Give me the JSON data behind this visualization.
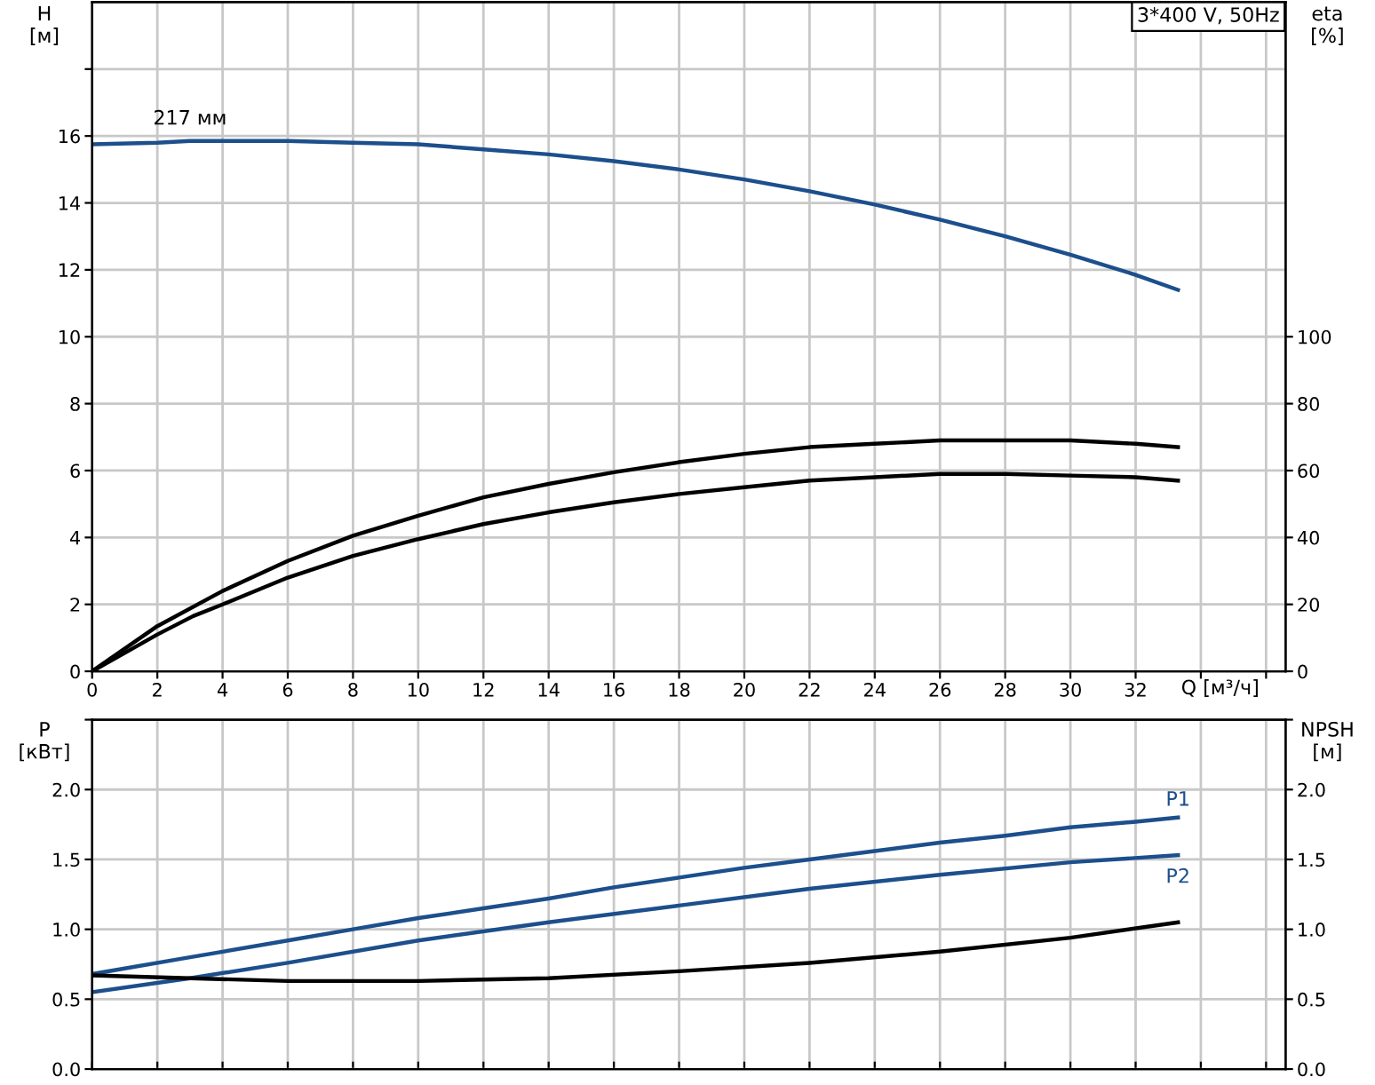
{
  "chart_data": [
    {
      "type": "line",
      "title": "3*400 V, 50Hz",
      "xlabel": "Q [м³/ч]",
      "ylabel": "H\n[м]",
      "y2label": "eta\n[%]",
      "xlim": [
        0,
        36.6
      ],
      "xticks": [
        0,
        2,
        4,
        6,
        8,
        10,
        12,
        14,
        16,
        18,
        20,
        22,
        24,
        26,
        28,
        30,
        32,
        {
          "value": 34,
          "label": null
        },
        {
          "value": 36,
          "label": null
        }
      ],
      "ylim": [
        0,
        20
      ],
      "yticks": [
        0,
        2,
        4,
        6,
        8,
        10,
        12,
        14,
        16,
        {
          "value": 18,
          "label": null
        }
      ],
      "y2lim": [
        0,
        200
      ],
      "y2ticks": [
        0,
        20,
        40,
        60,
        80,
        100
      ],
      "grid": true,
      "legend": false,
      "line_style": "solid",
      "marker": "none",
      "annotations": [
        {
          "text": "217 мм",
          "x": 3,
          "y": 15.85
        }
      ],
      "series": [
        {
          "color": "#1c4f8c",
          "axis": "y",
          "x": [
            0,
            2,
            3,
            4,
            6,
            8,
            10,
            12,
            14,
            16,
            18,
            20,
            22,
            24,
            26,
            28,
            30,
            32,
            33.3
          ],
          "values": [
            15.75,
            15.8,
            15.85,
            15.85,
            15.85,
            15.8,
            15.75,
            15.6,
            15.45,
            15.25,
            15.0,
            14.7,
            14.35,
            13.95,
            13.5,
            13.0,
            12.45,
            11.85,
            11.4
          ]
        },
        {
          "color": "#000000",
          "axis": "y2",
          "x": [
            0,
            2,
            4,
            6,
            8,
            10,
            12,
            14,
            16,
            18,
            20,
            22,
            24,
            26,
            28,
            30,
            32,
            33.3
          ],
          "values": [
            0,
            13.5,
            24,
            33,
            40.5,
            46.5,
            52,
            56,
            59.5,
            62.5,
            65,
            67,
            68,
            69,
            69,
            69,
            68,
            67
          ]
        },
        {
          "color": "#000000",
          "axis": "y2",
          "x": [
            0,
            2,
            3.1,
            4,
            6,
            8,
            10,
            12,
            14,
            16,
            18,
            20,
            22,
            24,
            26,
            28,
            30,
            32,
            33.3
          ],
          "values": [
            0,
            11,
            16.5,
            20,
            28,
            34.5,
            39.5,
            44,
            47.5,
            50.5,
            53,
            55,
            57,
            58,
            59,
            59,
            58.5,
            58,
            57
          ]
        }
      ]
    },
    {
      "type": "line",
      "ylabel": "P\n[кВт]",
      "y2label": "NPSH\n[м]",
      "tick_labels": "y",
      "xlim": [
        0,
        36.6
      ],
      "xticks": [
        0,
        2,
        4,
        6,
        8,
        10,
        12,
        14,
        16,
        18,
        20,
        22,
        24,
        26,
        28,
        30,
        32,
        34,
        36
      ],
      "ylim": [
        0,
        2.5
      ],
      "yticks": [
        {
          "value": 0,
          "label": "0.0"
        },
        {
          "value": 0.5,
          "label": "0.5"
        },
        {
          "value": 1,
          "label": "1.0"
        },
        {
          "value": 1.5,
          "label": "1.5"
        },
        {
          "value": 2,
          "label": "2.0"
        },
        {
          "value": 2.5,
          "label": null
        }
      ],
      "y2lim": [
        0,
        2.5
      ],
      "y2ticks": [
        {
          "value": 0,
          "label": "0.0"
        },
        {
          "value": 0.5,
          "label": "0.5"
        },
        {
          "value": 1,
          "label": "1.0"
        },
        {
          "value": 1.5,
          "label": "1.5"
        },
        {
          "value": 2,
          "label": "2.0"
        },
        {
          "value": 2.5,
          "label": null
        }
      ],
      "grid": true,
      "legend": false,
      "line_style": "solid",
      "marker": "none",
      "series": [
        {
          "name": "P1",
          "color": "#1c4f8c",
          "axis": "y",
          "x": [
            0,
            3,
            6,
            8,
            10,
            12,
            14,
            16,
            18,
            20,
            22,
            24,
            26,
            28,
            30,
            32,
            33.3
          ],
          "values": [
            0.68,
            0.8,
            0.92,
            1.0,
            1.08,
            1.15,
            1.22,
            1.3,
            1.37,
            1.44,
            1.5,
            1.56,
            1.62,
            1.67,
            1.73,
            1.77,
            1.8
          ]
        },
        {
          "name": "P2",
          "color": "#1c4f8c",
          "axis": "y",
          "x": [
            0,
            3,
            6,
            10,
            14,
            18,
            22,
            26,
            30,
            33.3
          ],
          "values": [
            0.55,
            0.65,
            0.76,
            0.92,
            1.05,
            1.17,
            1.29,
            1.39,
            1.48,
            1.53
          ]
        },
        {
          "color": "#000000",
          "axis": "y2",
          "x": [
            0,
            3,
            6,
            10,
            14,
            18,
            22,
            26,
            30,
            33.3
          ],
          "values": [
            0.67,
            0.65,
            0.63,
            0.63,
            0.65,
            0.7,
            0.76,
            0.84,
            0.94,
            1.05
          ]
        }
      ]
    }
  ]
}
